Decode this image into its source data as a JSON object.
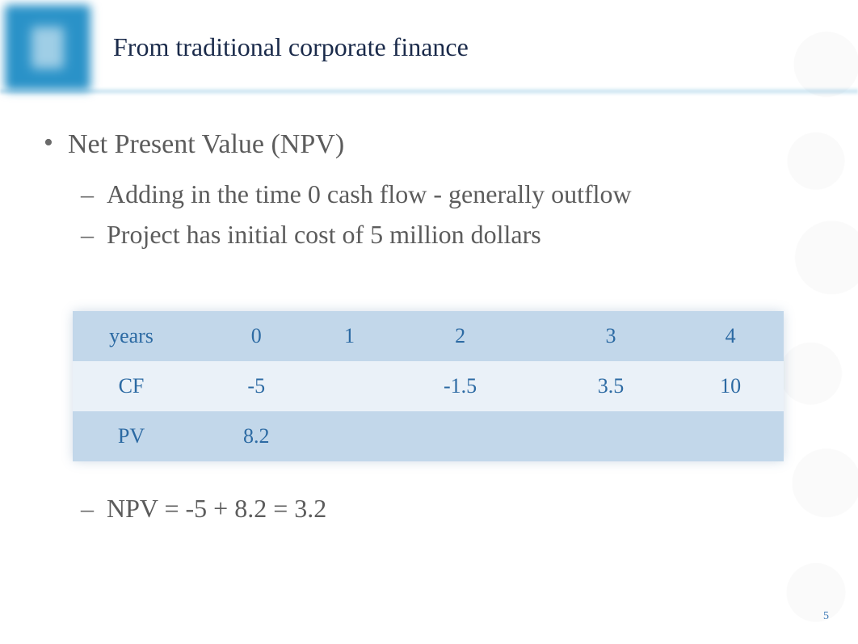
{
  "header": {
    "title": "From traditional corporate finance",
    "title_color": "#1a2a4a",
    "accent_color": "#2a92c8"
  },
  "bullets": {
    "l1": "Net Present Value (NPV)",
    "l2a": "Adding in the time 0 cash flow - generally outflow",
    "l2b": "Project has initial cost of 5 million dollars",
    "text_color": "#5c5c5c",
    "fontsize_l1": 34,
    "fontsize_l2": 32
  },
  "table": {
    "type": "table",
    "row_colors": {
      "dark": "#c2d7ea",
      "light": "#eaf1f8"
    },
    "text_color": "#2c6aa3",
    "fontsize": 26,
    "glow_color": "rgba(90,130,170,0.28)",
    "columns": [
      "years",
      "0",
      "1",
      "2",
      "3",
      "4"
    ],
    "rows": [
      {
        "label": "years",
        "cells": [
          "0",
          "1",
          "2",
          "3",
          "4"
        ],
        "shade": "dark"
      },
      {
        "label": "CF",
        "cells": [
          "-5",
          "",
          "-1.5",
          "3.5",
          "10"
        ],
        "shade": "light"
      },
      {
        "label": "PV",
        "cells": [
          "8.2",
          "",
          "",
          "",
          ""
        ],
        "shade": "dark"
      }
    ]
  },
  "equation": "NPV = -5 + 8.2 = 3.2",
  "page_number": "5",
  "page_number_color": "#3a77b5",
  "background_color": "#ffffff"
}
